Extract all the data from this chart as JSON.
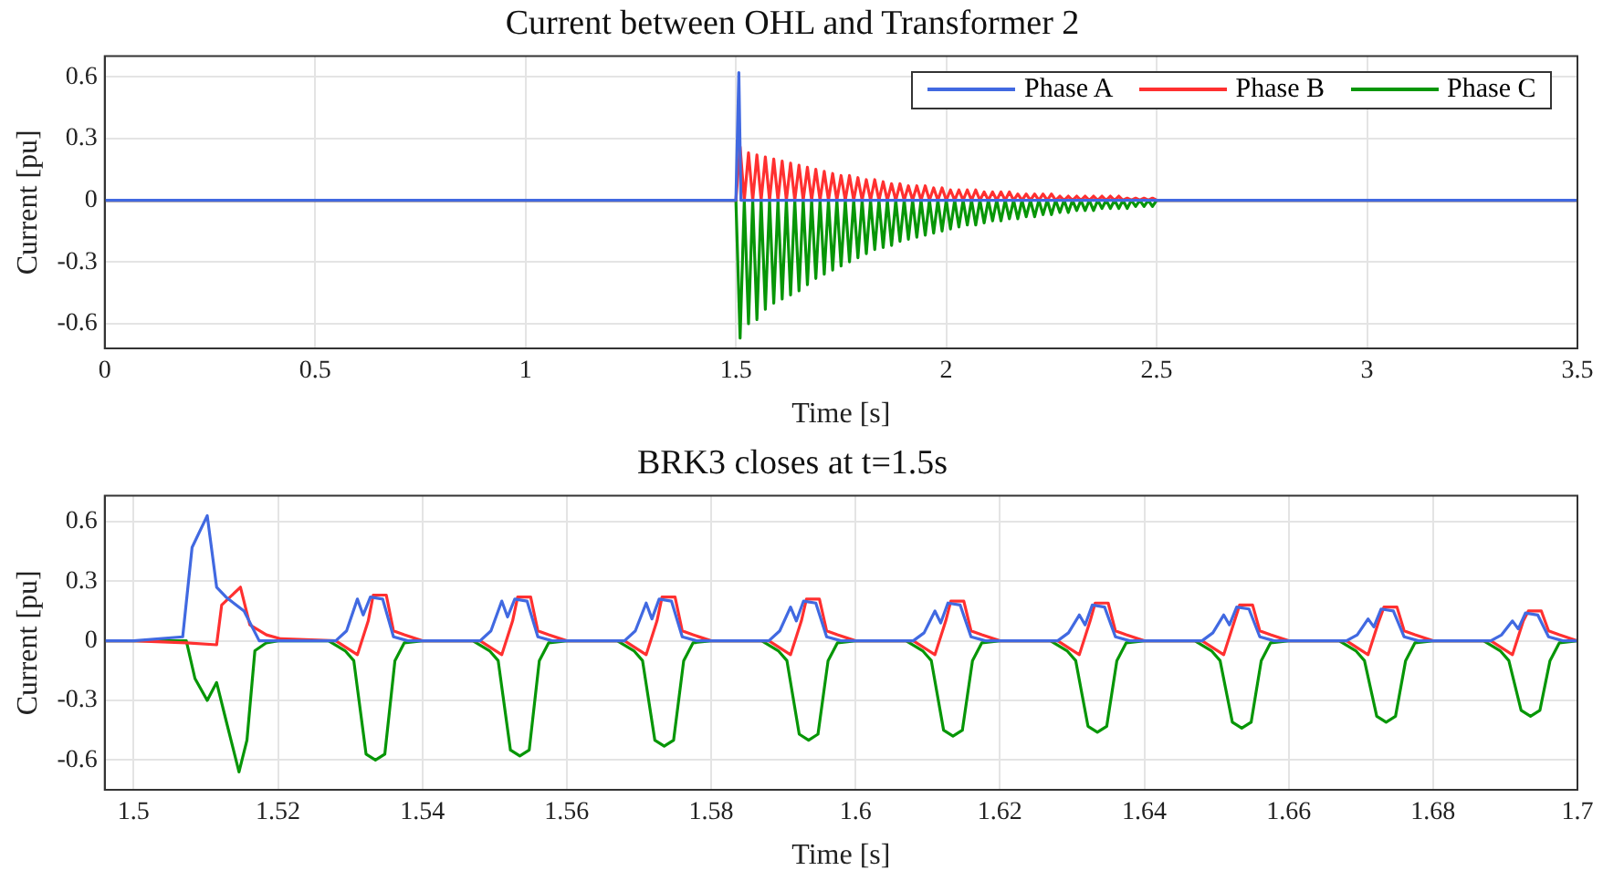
{
  "chart_data": [
    {
      "type": "line",
      "title": "Current between OHL and Transformer 2",
      "xlabel": "Time [s]",
      "ylabel": "Current [pu]",
      "xlim": [
        0,
        3.5
      ],
      "xticks": [
        0,
        0.5,
        1,
        1.5,
        2,
        2.5,
        3,
        3.5
      ],
      "ylim": [
        -0.72,
        0.7
      ],
      "yticks": [
        -0.6,
        -0.3,
        0,
        0.3,
        0.6
      ],
      "grid": true,
      "legend": "top right",
      "marker": "none",
      "x": [
        0,
        1.5,
        1.51,
        1.52,
        1.53,
        1.54,
        1.55,
        1.56,
        1.57,
        1.58,
        1.59,
        1.6,
        1.61,
        1.62,
        1.63,
        1.64,
        1.65,
        1.66,
        1.67,
        1.68,
        1.69,
        1.7,
        1.71,
        1.72,
        1.73,
        1.74,
        1.75,
        1.76,
        1.77,
        1.78,
        1.79,
        1.8,
        1.81,
        1.82,
        1.83,
        1.84,
        1.85,
        1.86,
        1.87,
        1.88,
        1.89,
        1.9,
        1.91,
        1.92,
        1.93,
        1.94,
        1.95,
        1.96,
        1.97,
        1.98,
        1.99,
        2,
        2.01,
        2.02,
        2.03,
        2.04,
        2.05,
        2.06,
        2.07,
        2.08,
        2.09,
        2.1,
        2.11,
        2.12,
        2.13,
        2.14,
        2.15,
        2.16,
        2.17,
        2.18,
        2.19,
        2.2,
        2.21,
        2.22,
        2.23,
        2.24,
        2.25,
        2.26,
        2.27,
        2.28,
        2.29,
        2.3,
        2.31,
        2.32,
        2.33,
        2.34,
        2.35,
        2.36,
        2.37,
        2.38,
        2.39,
        2.4,
        2.41,
        2.42,
        2.43,
        2.44,
        2.45,
        2.46,
        2.47,
        2.48,
        2.49,
        2.5,
        3.5
      ],
      "series": [
        {
          "name": "Phase A",
          "color": "#4169e1",
          "x": [
            0,
            1.5,
            1.507,
            1.512,
            3.5
          ],
          "values": [
            0,
            0,
            0.62,
            0,
            0
          ]
        },
        {
          "name": "Phase B",
          "color": "#ff3030",
          "values": [
            0,
            0,
            0.26,
            0,
            0.23,
            0,
            0.22,
            0,
            0.21,
            0,
            0.2,
            0,
            0.19,
            0,
            0.18,
            0,
            0.17,
            0,
            0.16,
            0,
            0.15,
            0,
            0.14,
            0,
            0.13,
            0,
            0.12,
            0,
            0.12,
            0,
            0.11,
            0,
            0.1,
            0,
            0.1,
            0,
            0.09,
            0,
            0.08,
            0,
            0.08,
            0,
            0.07,
            0,
            0.07,
            0,
            0.07,
            0,
            0.06,
            0,
            0.06,
            0,
            0.05,
            0,
            0.05,
            0,
            0.05,
            0,
            0.05,
            0,
            0.04,
            0,
            0.04,
            0,
            0.04,
            0,
            0.04,
            0,
            0.03,
            0,
            0.03,
            0,
            0.03,
            0,
            0.03,
            0,
            0.03,
            0,
            0.02,
            0,
            0.02,
            0,
            0.02,
            0,
            0.02,
            0,
            0.02,
            0,
            0.02,
            0,
            0.02,
            0,
            0.02,
            0,
            0.01,
            0,
            0.01,
            0,
            0.01,
            0,
            0.01,
            0,
            0
          ]
        },
        {
          "name": "Phase C",
          "color": "#079607",
          "values": [
            0,
            0,
            -0.67,
            0,
            -0.6,
            0,
            -0.58,
            0,
            -0.53,
            0,
            -0.5,
            0,
            -0.48,
            0,
            -0.46,
            0,
            -0.44,
            0,
            -0.41,
            0,
            -0.38,
            0,
            -0.36,
            0,
            -0.34,
            0,
            -0.32,
            0,
            -0.3,
            0,
            -0.28,
            0,
            -0.26,
            0,
            -0.24,
            0,
            -0.23,
            0,
            -0.22,
            0,
            -0.2,
            0,
            -0.19,
            0,
            -0.18,
            0,
            -0.17,
            0,
            -0.16,
            0,
            -0.15,
            0,
            -0.14,
            0,
            -0.13,
            0,
            -0.12,
            0,
            -0.12,
            0,
            -0.11,
            0,
            -0.1,
            0,
            -0.1,
            0,
            -0.09,
            0,
            -0.09,
            0,
            -0.08,
            0,
            -0.08,
            0,
            -0.07,
            0,
            -0.07,
            0,
            -0.06,
            0,
            -0.06,
            0,
            -0.05,
            0,
            -0.05,
            0,
            -0.05,
            0,
            -0.04,
            0,
            -0.04,
            0,
            -0.04,
            0,
            -0.04,
            0,
            -0.03,
            0,
            -0.03,
            0,
            -0.03,
            0,
            0
          ]
        }
      ]
    },
    {
      "type": "line",
      "title": "BRK3 closes at t=1.5s",
      "xlabel": "Time [s]",
      "ylabel": "Current [pu]",
      "xlim": [
        1.496,
        1.7
      ],
      "xticks": [
        1.5,
        1.52,
        1.54,
        1.56,
        1.58,
        1.6,
        1.62,
        1.64,
        1.66,
        1.68,
        1.7
      ],
      "ylim": [
        -0.75,
        0.73
      ],
      "yticks": [
        -0.6,
        -0.3,
        0,
        0.3,
        0.6
      ],
      "grid": true,
      "marker": "none",
      "series": [
        {
          "color": "#4169e1",
          "x": [
            1.496,
            1.5,
            1.5068,
            1.5081,
            1.5102,
            1.5115,
            1.5128,
            1.5153,
            1.5174,
            1.528,
            1.5295,
            1.531,
            1.5318,
            1.5328,
            1.5345,
            1.536,
            1.538,
            1.548,
            1.5495,
            1.551,
            1.5518,
            1.5528,
            1.5545,
            1.556,
            1.558,
            1.568,
            1.5695,
            1.571,
            1.5718,
            1.5728,
            1.5745,
            1.576,
            1.578,
            1.588,
            1.5895,
            1.591,
            1.5918,
            1.5928,
            1.5945,
            1.596,
            1.598,
            1.608,
            1.6095,
            1.611,
            1.6118,
            1.6128,
            1.6145,
            1.616,
            1.618,
            1.628,
            1.6295,
            1.631,
            1.6318,
            1.6328,
            1.6345,
            1.636,
            1.638,
            1.648,
            1.6495,
            1.651,
            1.6518,
            1.6528,
            1.6545,
            1.656,
            1.658,
            1.668,
            1.6695,
            1.671,
            1.6718,
            1.6728,
            1.6745,
            1.676,
            1.678,
            1.688,
            1.6895,
            1.691,
            1.6918,
            1.6928,
            1.6945,
            1.696,
            1.698,
            1.7
          ],
          "values": [
            0,
            0,
            0.02,
            0.47,
            0.63,
            0.27,
            0.22,
            0.15,
            0,
            0,
            0.05,
            0.21,
            0.13,
            0.22,
            0.21,
            0.02,
            0,
            0,
            0.05,
            0.2,
            0.12,
            0.21,
            0.2,
            0.02,
            0,
            0,
            0.05,
            0.19,
            0.11,
            0.21,
            0.2,
            0.02,
            0,
            0,
            0.05,
            0.17,
            0.1,
            0.2,
            0.19,
            0.02,
            0,
            0,
            0.04,
            0.15,
            0.09,
            0.19,
            0.18,
            0.02,
            0,
            0,
            0.04,
            0.13,
            0.08,
            0.18,
            0.17,
            0.02,
            0,
            0,
            0.04,
            0.13,
            0.08,
            0.17,
            0.16,
            0.02,
            0,
            0,
            0.03,
            0.11,
            0.07,
            0.16,
            0.15,
            0.02,
            0,
            0,
            0.03,
            0.1,
            0.06,
            0.14,
            0.13,
            0.02,
            0,
            0
          ]
        },
        {
          "color": "#ff3030",
          "x": [
            1.496,
            1.5,
            1.5073,
            1.5115,
            1.5122,
            1.5148,
            1.5161,
            1.5184,
            1.5204,
            1.528,
            1.531,
            1.5325,
            1.5332,
            1.535,
            1.536,
            1.5375,
            1.54,
            1.548,
            1.551,
            1.5525,
            1.5532,
            1.555,
            1.556,
            1.5575,
            1.56,
            1.568,
            1.571,
            1.5725,
            1.5732,
            1.575,
            1.576,
            1.5775,
            1.58,
            1.588,
            1.591,
            1.5925,
            1.5932,
            1.595,
            1.596,
            1.5975,
            1.6,
            1.608,
            1.611,
            1.6125,
            1.6132,
            1.615,
            1.616,
            1.6175,
            1.62,
            1.628,
            1.631,
            1.6325,
            1.6332,
            1.635,
            1.636,
            1.6375,
            1.64,
            1.648,
            1.651,
            1.6525,
            1.6532,
            1.655,
            1.656,
            1.6575,
            1.66,
            1.668,
            1.671,
            1.6725,
            1.6732,
            1.675,
            1.676,
            1.6775,
            1.68,
            1.688,
            1.691,
            1.6925,
            1.6932,
            1.695,
            1.696,
            1.6975,
            1.7
          ],
          "values": [
            0,
            0,
            -0.01,
            -0.02,
            0.18,
            0.27,
            0.08,
            0.03,
            0.01,
            0,
            -0.07,
            0.1,
            0.23,
            0.23,
            0.05,
            0.03,
            0,
            0,
            -0.07,
            0.1,
            0.22,
            0.22,
            0.05,
            0.03,
            0,
            0,
            -0.07,
            0.1,
            0.22,
            0.22,
            0.05,
            0.03,
            0,
            0,
            -0.07,
            0.1,
            0.21,
            0.21,
            0.05,
            0.03,
            0,
            0,
            -0.07,
            0.1,
            0.2,
            0.2,
            0.05,
            0.03,
            0,
            0,
            -0.07,
            0.1,
            0.19,
            0.19,
            0.05,
            0.03,
            0,
            0,
            -0.07,
            0.1,
            0.18,
            0.18,
            0.05,
            0.03,
            0,
            0,
            -0.07,
            0.1,
            0.17,
            0.17,
            0.05,
            0.03,
            0,
            0,
            -0.07,
            0.1,
            0.15,
            0.15,
            0.05,
            0.03,
            0
          ]
        },
        {
          "color": "#079607",
          "x": [
            1.496,
            1.5,
            1.5073,
            1.5085,
            1.5102,
            1.5115,
            1.5128,
            1.5146,
            1.5157,
            1.5168,
            1.5184,
            1.52,
            1.527,
            1.5293,
            1.5305,
            1.5322,
            1.5335,
            1.5348,
            1.5362,
            1.5375,
            1.54,
            1.547,
            1.5493,
            1.5505,
            1.5522,
            1.5535,
            1.5548,
            1.5562,
            1.5575,
            1.56,
            1.567,
            1.5693,
            1.5705,
            1.5722,
            1.5735,
            1.5748,
            1.5762,
            1.5775,
            1.58,
            1.587,
            1.5893,
            1.5905,
            1.5922,
            1.5935,
            1.5948,
            1.5962,
            1.5975,
            1.6,
            1.607,
            1.6093,
            1.6105,
            1.6122,
            1.6135,
            1.6148,
            1.6162,
            1.6175,
            1.62,
            1.627,
            1.6293,
            1.6305,
            1.6322,
            1.6335,
            1.6348,
            1.6362,
            1.6375,
            1.64,
            1.647,
            1.6493,
            1.6505,
            1.6522,
            1.6535,
            1.6548,
            1.6562,
            1.6575,
            1.66,
            1.667,
            1.6693,
            1.6705,
            1.6722,
            1.6735,
            1.6748,
            1.6762,
            1.6775,
            1.68,
            1.687,
            1.6893,
            1.6905,
            1.6922,
            1.6935,
            1.6948,
            1.6962,
            1.6975,
            1.7
          ],
          "values": [
            0,
            0,
            0,
            -0.19,
            -0.3,
            -0.21,
            -0.4,
            -0.66,
            -0.5,
            -0.05,
            -0.01,
            0,
            0,
            -0.05,
            -0.1,
            -0.57,
            -0.6,
            -0.57,
            -0.1,
            -0.01,
            0,
            0,
            -0.05,
            -0.1,
            -0.55,
            -0.58,
            -0.55,
            -0.1,
            -0.01,
            0,
            0,
            -0.05,
            -0.1,
            -0.5,
            -0.53,
            -0.5,
            -0.1,
            -0.01,
            0,
            0,
            -0.05,
            -0.1,
            -0.47,
            -0.5,
            -0.47,
            -0.1,
            -0.01,
            0,
            0,
            -0.05,
            -0.1,
            -0.45,
            -0.48,
            -0.45,
            -0.1,
            -0.01,
            0,
            0,
            -0.05,
            -0.1,
            -0.43,
            -0.46,
            -0.43,
            -0.1,
            -0.01,
            0,
            0,
            -0.05,
            -0.1,
            -0.41,
            -0.44,
            -0.41,
            -0.1,
            -0.01,
            0,
            0,
            -0.05,
            -0.1,
            -0.38,
            -0.41,
            -0.38,
            -0.1,
            -0.01,
            0,
            0,
            -0.05,
            -0.1,
            -0.35,
            -0.38,
            -0.35,
            -0.1,
            -0.01,
            0
          ]
        }
      ]
    }
  ]
}
